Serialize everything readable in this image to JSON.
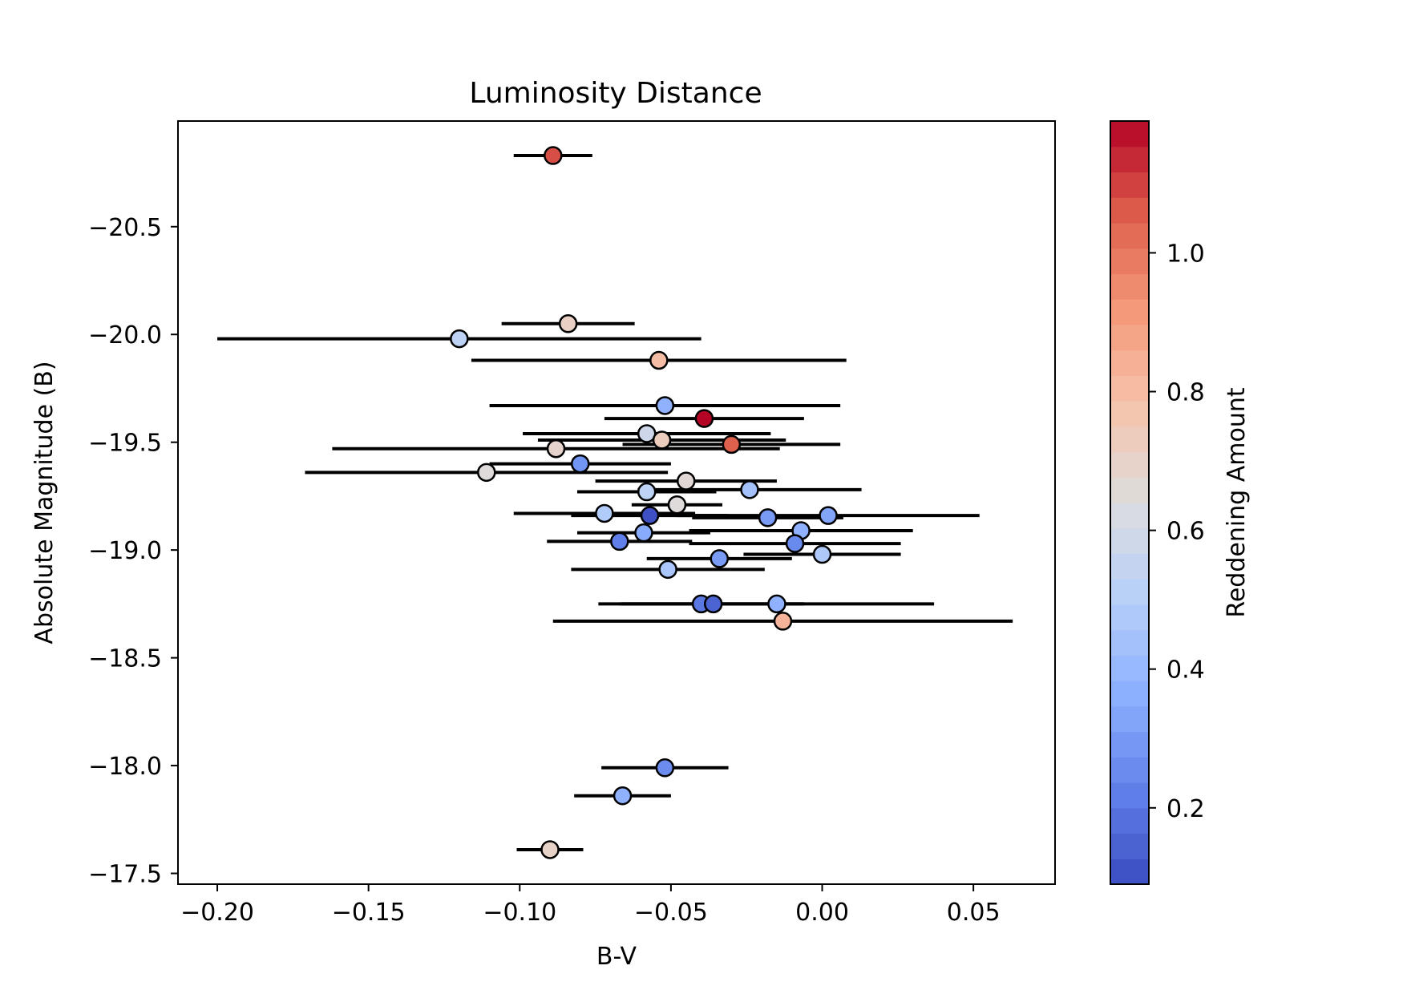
{
  "chart_data": {
    "type": "scatter",
    "title": "Luminosity Distance",
    "xlabel": "B-V",
    "ylabel": "Absolute Magnitude (B)",
    "xlim": [
      -0.213,
      0.077
    ],
    "ylim": [
      -17.45,
      -20.99
    ],
    "y_inverted": true,
    "x_ticks": [
      -0.2,
      -0.15,
      -0.1,
      -0.05,
      0.0,
      0.05
    ],
    "x_tick_labels": [
      "−0.20",
      "−0.15",
      "−0.10",
      "−0.05",
      "0.00",
      "0.05"
    ],
    "y_ticks": [
      -20.5,
      -20.0,
      -19.5,
      -19.0,
      -18.5,
      -18.0,
      -17.5
    ],
    "y_tick_labels": [
      "−20.5",
      "−20.0",
      "−19.5",
      "−19.0",
      "−18.5",
      "−18.0",
      "−17.5"
    ],
    "grid": false,
    "colorbar": {
      "label": "Reddening Amount",
      "colormap": "coolwarm",
      "range": [
        0.09,
        1.19
      ],
      "levels": 30,
      "ticks": [
        0.2,
        0.4,
        0.6,
        0.8,
        1.0
      ],
      "tick_labels": [
        "0.2",
        "0.4",
        "0.6",
        "0.8",
        "1.0"
      ]
    },
    "points": [
      {
        "x": -0.089,
        "y": -20.83,
        "xerr_low": 0.013,
        "xerr_high": 0.013,
        "c": 1.08
      },
      {
        "x": -0.084,
        "y": -20.05,
        "xerr_low": 0.022,
        "xerr_high": 0.022,
        "c": 0.71
      },
      {
        "x": -0.12,
        "y": -19.98,
        "xerr_low": 0.08,
        "xerr_high": 0.08,
        "c": 0.52
      },
      {
        "x": -0.054,
        "y": -19.88,
        "xerr_low": 0.062,
        "xerr_high": 0.062,
        "c": 0.8
      },
      {
        "x": -0.052,
        "y": -19.67,
        "xerr_low": 0.058,
        "xerr_high": 0.058,
        "c": 0.37
      },
      {
        "x": -0.039,
        "y": -19.61,
        "xerr_low": 0.033,
        "xerr_high": 0.033,
        "c": 1.19
      },
      {
        "x": -0.058,
        "y": -19.54,
        "xerr_low": 0.041,
        "xerr_high": 0.041,
        "c": 0.58
      },
      {
        "x": -0.053,
        "y": -19.51,
        "xerr_low": 0.041,
        "xerr_high": 0.041,
        "c": 0.73
      },
      {
        "x": -0.03,
        "y": -19.49,
        "xerr_low": 0.036,
        "xerr_high": 0.036,
        "c": 1.05
      },
      {
        "x": -0.088,
        "y": -19.47,
        "xerr_low": 0.074,
        "xerr_high": 0.074,
        "c": 0.69
      },
      {
        "x": -0.08,
        "y": -19.4,
        "xerr_low": 0.03,
        "xerr_high": 0.03,
        "c": 0.28
      },
      {
        "x": -0.111,
        "y": -19.36,
        "xerr_low": 0.06,
        "xerr_high": 0.06,
        "c": 0.65
      },
      {
        "x": -0.045,
        "y": -19.32,
        "xerr_low": 0.03,
        "xerr_high": 0.03,
        "c": 0.67
      },
      {
        "x": -0.058,
        "y": -19.27,
        "xerr_low": 0.023,
        "xerr_high": 0.023,
        "c": 0.52
      },
      {
        "x": -0.024,
        "y": -19.28,
        "xerr_low": 0.037,
        "xerr_high": 0.037,
        "c": 0.44
      },
      {
        "x": -0.048,
        "y": -19.21,
        "xerr_low": 0.015,
        "xerr_high": 0.015,
        "c": 0.65
      },
      {
        "x": -0.072,
        "y": -19.17,
        "xerr_low": 0.03,
        "xerr_high": 0.03,
        "c": 0.48
      },
      {
        "x": -0.057,
        "y": -19.16,
        "xerr_low": 0.026,
        "xerr_high": 0.026,
        "c": 0.1
      },
      {
        "x": -0.018,
        "y": -19.15,
        "xerr_low": 0.025,
        "xerr_high": 0.025,
        "c": 0.3
      },
      {
        "x": 0.002,
        "y": -19.16,
        "xerr_low": 0.05,
        "xerr_high": 0.05,
        "c": 0.33
      },
      {
        "x": -0.059,
        "y": -19.08,
        "xerr_low": 0.022,
        "xerr_high": 0.022,
        "c": 0.35
      },
      {
        "x": -0.007,
        "y": -19.09,
        "xerr_low": 0.037,
        "xerr_high": 0.037,
        "c": 0.37
      },
      {
        "x": -0.067,
        "y": -19.04,
        "xerr_low": 0.024,
        "xerr_high": 0.024,
        "c": 0.22
      },
      {
        "x": -0.009,
        "y": -19.03,
        "xerr_low": 0.035,
        "xerr_high": 0.035,
        "c": 0.25
      },
      {
        "x": 0.0,
        "y": -18.98,
        "xerr_low": 0.026,
        "xerr_high": 0.026,
        "c": 0.47
      },
      {
        "x": -0.034,
        "y": -18.96,
        "xerr_low": 0.024,
        "xerr_high": 0.024,
        "c": 0.3
      },
      {
        "x": -0.051,
        "y": -18.91,
        "xerr_low": 0.032,
        "xerr_high": 0.032,
        "c": 0.46
      },
      {
        "x": -0.04,
        "y": -18.75,
        "xerr_low": 0.034,
        "xerr_high": 0.034,
        "c": 0.2
      },
      {
        "x": -0.036,
        "y": -18.75,
        "xerr_low": 0.03,
        "xerr_high": 0.03,
        "c": 0.15
      },
      {
        "x": -0.015,
        "y": -18.75,
        "xerr_low": 0.052,
        "xerr_high": 0.052,
        "c": 0.37
      },
      {
        "x": -0.013,
        "y": -18.67,
        "xerr_low": 0.076,
        "xerr_high": 0.076,
        "c": 0.83
      },
      {
        "x": -0.052,
        "y": -17.99,
        "xerr_low": 0.021,
        "xerr_high": 0.021,
        "c": 0.26
      },
      {
        "x": -0.066,
        "y": -17.86,
        "xerr_low": 0.016,
        "xerr_high": 0.016,
        "c": 0.37
      },
      {
        "x": -0.09,
        "y": -17.61,
        "xerr_low": 0.011,
        "xerr_high": 0.011,
        "c": 0.7
      }
    ]
  }
}
